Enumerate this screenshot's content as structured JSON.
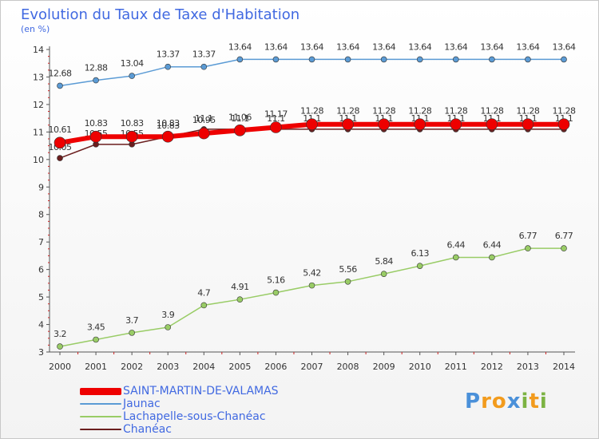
{
  "chart_data": {
    "type": "line",
    "title": "Evolution du Taux de Taxe d'Habitation",
    "subtitle": "(en %)",
    "x": [
      "2000",
      "2001",
      "2002",
      "2003",
      "2004",
      "2005",
      "2006",
      "2007",
      "2008",
      "2009",
      "2010",
      "2011",
      "2012",
      "2013",
      "2014"
    ],
    "ylim": [
      3,
      14
    ],
    "yticks": [
      3,
      4,
      5,
      6,
      7,
      8,
      9,
      10,
      11,
      12,
      13,
      14
    ],
    "grid": false,
    "legend_position": "bottom-left",
    "series": [
      {
        "name": "Jaunac",
        "color": "#5b9bd5",
        "values": [
          12.68,
          12.88,
          13.04,
          13.37,
          13.37,
          13.64,
          13.64,
          13.64,
          13.64,
          13.64,
          13.64,
          13.64,
          13.64,
          13.64,
          13.64
        ],
        "labels": [
          "12.68",
          "12.88",
          "13.04",
          "13.37",
          "13.37",
          "13.64",
          "13.64",
          "13.64",
          "13.64",
          "13.64",
          "13.64",
          "13.64",
          "13.64",
          "13.64",
          "13.64"
        ]
      },
      {
        "name": "Lachapelle-sous-Chanéac",
        "color": "#99cc66",
        "values": [
          3.2,
          3.45,
          3.7,
          3.9,
          4.7,
          4.91,
          5.16,
          5.42,
          5.56,
          5.84,
          6.13,
          6.44,
          6.44,
          6.77,
          6.77
        ],
        "labels": [
          "3.2",
          "3.45",
          "3.7",
          "3.9",
          "4.7",
          "4.91",
          "5.16",
          "5.42",
          "5.56",
          "5.84",
          "6.13",
          "6.44",
          "6.44",
          "6.77",
          "6.77"
        ]
      },
      {
        "name": "Chanéac",
        "color": "#6b1e1e",
        "values": [
          10.05,
          10.55,
          10.55,
          10.83,
          11.1,
          11.1,
          11.1,
          11.1,
          11.1,
          11.1,
          11.1,
          11.1,
          11.1,
          11.1,
          11.1
        ],
        "labels": [
          "10.05",
          "10.55",
          "10.55",
          "10.83",
          "11.1",
          "11.1",
          "11.1",
          "11.1",
          "11.1",
          "11.1",
          "11.1",
          "11.1",
          "11.1",
          "11.1",
          "11.1"
        ]
      },
      {
        "name": "SAINT-MARTIN-DE-VALAMAS",
        "color": "#ee0000",
        "values": [
          10.61,
          10.83,
          10.83,
          10.83,
          10.95,
          11.06,
          11.17,
          11.28,
          11.28,
          11.28,
          11.28,
          11.28,
          11.28,
          11.28,
          11.28
        ],
        "labels": [
          "10.61",
          "10.83",
          "10.83",
          "10.83",
          "10.95",
          "11.06",
          "11.17",
          "11.28",
          "11.28",
          "11.28",
          "11.28",
          "11.28",
          "11.28",
          "11.28",
          "11.28"
        ]
      }
    ],
    "legend_order": [
      "SAINT-MARTIN-DE-VALAMAS",
      "Jaunac",
      "Lachapelle-sous-Chanéac",
      "Chanéac"
    ]
  },
  "logo": {
    "letters": [
      "P",
      "r",
      "o",
      "x",
      "i",
      "t",
      "i"
    ],
    "colors": [
      "#4a90d9",
      "#f29b1d",
      "#f29b1d",
      "#4a90d9",
      "#7cb342",
      "#f29b1d",
      "#7cb342"
    ]
  }
}
